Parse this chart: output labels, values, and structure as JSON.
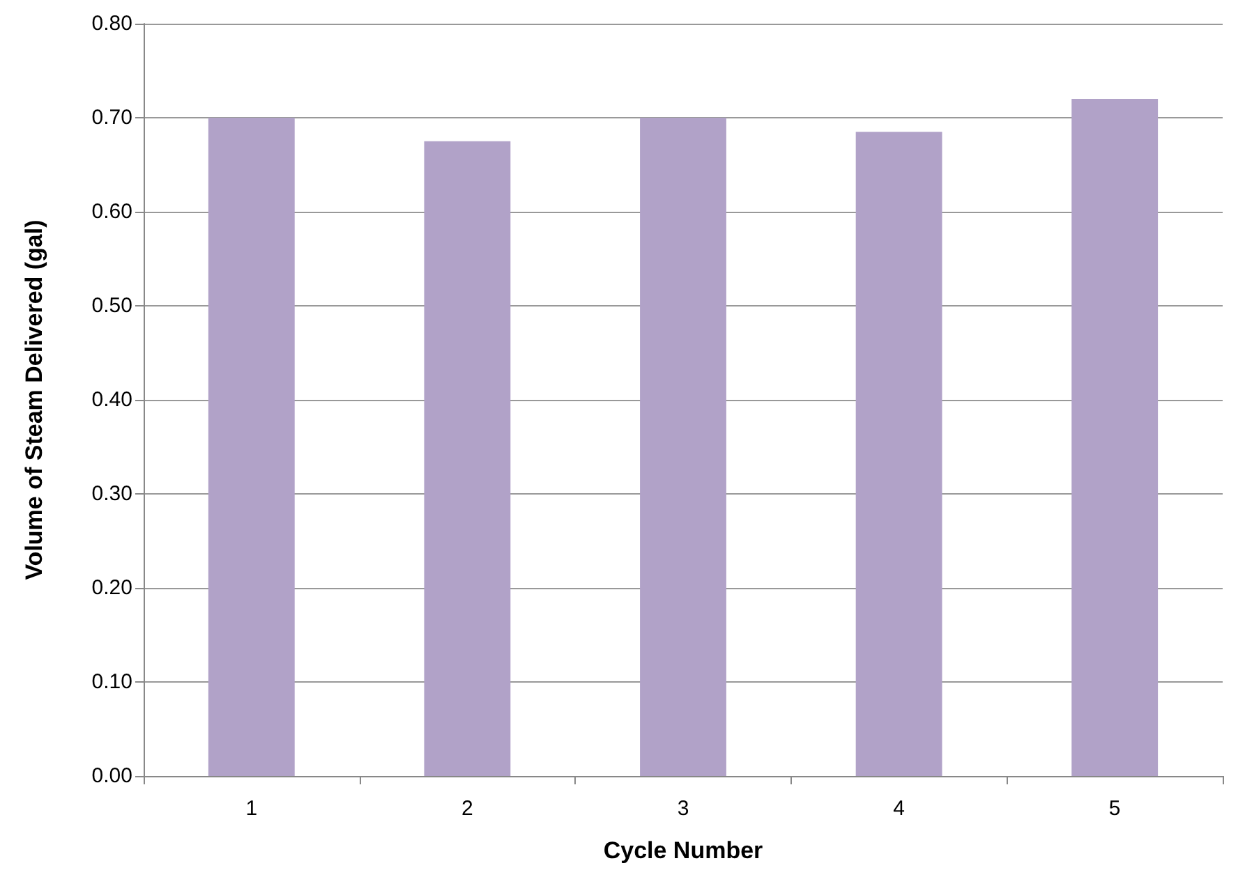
{
  "chart_data": {
    "type": "bar",
    "xlabel": "Cycle Number",
    "ylabel": "Volume of Steam Delivered (gal)",
    "categories": [
      "1",
      "2",
      "3",
      "4",
      "5"
    ],
    "values": [
      0.7,
      0.675,
      0.7,
      0.685,
      0.72
    ],
    "color": "#b1a2c8",
    "ylim": [
      0,
      0.8
    ],
    "yticks": [
      {
        "value": 0,
        "label": "0.00"
      },
      {
        "value": 0.1,
        "label": "0.10"
      },
      {
        "value": 0.2,
        "label": "0.20"
      },
      {
        "value": 0.3,
        "label": "0.30"
      },
      {
        "value": 0.4,
        "label": "0.40"
      },
      {
        "value": 0.5,
        "label": "0.50"
      },
      {
        "value": 0.6,
        "label": "0.60"
      },
      {
        "value": 0.7,
        "label": "0.70"
      },
      {
        "value": 0.8,
        "label": "0.80"
      }
    ],
    "grid": "y"
  }
}
